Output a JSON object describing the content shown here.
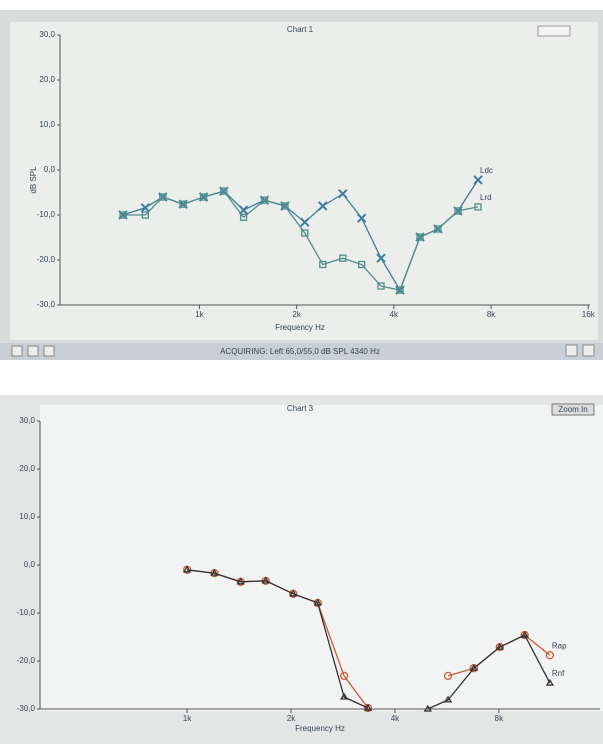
{
  "chart_data": [
    {
      "type": "line",
      "title": "Chart 1",
      "xlabel": "Frequency Hz",
      "ylabel": "dB SPL",
      "status": "ACQUIRING: Left 65,0/55,0 dB SPL 4340 Hz",
      "log_x": true,
      "grid": false,
      "xlim": [
        370,
        16200
      ],
      "xticks": [
        {
          "value": 1000,
          "label": "1k"
        },
        {
          "value": 2000,
          "label": "2k"
        },
        {
          "value": 4000,
          "label": "4k"
        },
        {
          "value": 8000,
          "label": "8k"
        },
        {
          "value": 16000,
          "label": "16k"
        }
      ],
      "ylim": [
        -30,
        30
      ],
      "yticks": [
        {
          "value": 30,
          "label": "30,0"
        },
        {
          "value": 20,
          "label": "20,0"
        },
        {
          "value": 10,
          "label": "10,0"
        },
        {
          "value": 0,
          "label": "0,0"
        },
        {
          "value": -10,
          "label": "-10,0"
        },
        {
          "value": -20,
          "label": "-20,0"
        },
        {
          "value": -30,
          "label": "-30,0"
        }
      ],
      "x": [
        580,
        680,
        770,
        890,
        1030,
        1190,
        1370,
        1590,
        1840,
        2120,
        2410,
        2780,
        3180,
        3650,
        4180,
        4820,
        5480,
        6320,
        7290
      ],
      "series": [
        {
          "name": "Ldc",
          "color": "#3d7d9c",
          "marker": "cross",
          "values": [
            -10,
            -8.4,
            -6,
            -7.6,
            -6,
            -4.7,
            -8.9,
            -6.7,
            -8,
            -11.6,
            -8,
            -5.3,
            -10.7,
            -19.6,
            -26.7,
            -14.9,
            -13.1,
            -9.1,
            -2.2
          ]
        },
        {
          "name": "Lrd",
          "color": "#4f8f8a",
          "marker": "square",
          "values": [
            -10,
            -10,
            -6,
            -7.6,
            -6,
            -4.7,
            -10.5,
            -6.7,
            -8,
            -14,
            -21,
            -19.6,
            -21,
            -25.8,
            -26.7,
            -14.9,
            -13.1,
            -9.1,
            -8.2
          ]
        }
      ]
    },
    {
      "type": "line",
      "title": "Chart 3",
      "xlabel": "Frequency Hz",
      "button": "Zoom In",
      "log_x": true,
      "grid": false,
      "xlim": [
        375,
        15700
      ],
      "xticks": [
        {
          "value": 1000,
          "label": "1k"
        },
        {
          "value": 2000,
          "label": "2k"
        },
        {
          "value": 4000,
          "label": "4k"
        },
        {
          "value": 8000,
          "label": "8k"
        }
      ],
      "ylim": [
        -30,
        30
      ],
      "yticks": [
        {
          "value": 30,
          "label": "30,0"
        },
        {
          "value": 20,
          "label": "20,0"
        },
        {
          "value": 10,
          "label": "10,0"
        },
        {
          "value": 0,
          "label": "0,0"
        },
        {
          "value": -10,
          "label": "-10,0"
        },
        {
          "value": -20,
          "label": "-20,0"
        },
        {
          "value": -30,
          "label": "-30,0"
        }
      ],
      "x": [
        1000,
        1200,
        1430,
        1690,
        2030,
        2390,
        2850,
        3340,
        4000,
        4980,
        5700,
        6770,
        8050,
        9500,
        11240
      ],
      "series": [
        {
          "name": "Rap",
          "color": "#cf5a3a",
          "marker": "circle",
          "values": [
            -1,
            -1.7,
            -3.5,
            -3.3,
            -6,
            -7.9,
            -23.1,
            -29.8,
            null,
            null,
            -23.1,
            -21.5,
            -17.1,
            -14.6,
            -18.8
          ]
        },
        {
          "name": "Rnf",
          "color": "#333333",
          "marker": "triangle",
          "values": [
            -1,
            -1.7,
            -3.5,
            -3.3,
            -6,
            -7.9,
            -27.5,
            -29.8,
            null,
            -30,
            -28.1,
            -21.5,
            -17.1,
            -14.6,
            -24.6
          ]
        }
      ]
    }
  ]
}
